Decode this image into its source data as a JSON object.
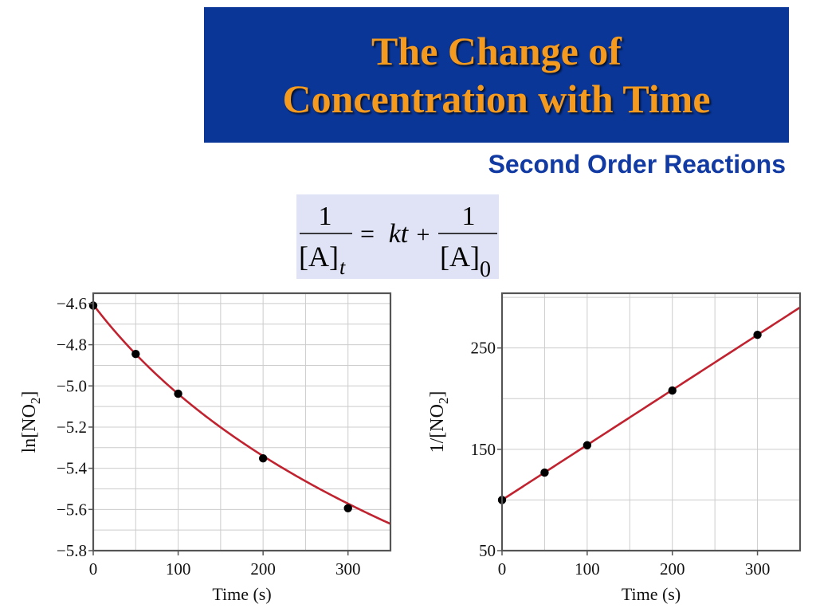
{
  "slide": {
    "title_lines": [
      "The Change of",
      "Concentration with Time"
    ],
    "subtitle": "Second Order Reactions",
    "equation": {
      "lhs_numerator": "1",
      "lhs_denominator": "[A]",
      "lhs_subscript": "t",
      "equals": "=",
      "middle_term": "kt",
      "plus": "+",
      "rhs_numerator": "1",
      "rhs_denominator": "[A]",
      "rhs_subscript": "0"
    }
  },
  "colors": {
    "title_bg": "#0a3697",
    "title_text": "#f39a1f",
    "subtitle_text": "#123aa3",
    "equation_bg": "#e0e3f5",
    "curve": "#c0232f",
    "points": "#000000",
    "grid": "#cccccc"
  },
  "chart_data": [
    {
      "type": "scatter",
      "xlabel": "Time (s)",
      "ylabel": "ln[NO",
      "ylabel_sub": "2",
      "ylabel_end": "]",
      "xlim": [
        0,
        350
      ],
      "ylim": [
        -5.8,
        -4.55
      ],
      "xticks": [
        0,
        100,
        200,
        300
      ],
      "xtick_labels": [
        "0",
        "100",
        "200",
        "300"
      ],
      "yticks": [
        -4.6,
        -4.8,
        -5.0,
        -5.2,
        -5.4,
        -5.6,
        -5.8
      ],
      "ytick_labels": [
        "−4.6",
        "−4.8",
        "−5.0",
        "−5.2",
        "−5.4",
        "−5.6",
        "−5.8"
      ],
      "grid": true,
      "series": [
        {
          "x": [
            0,
            50,
            100,
            200,
            300
          ],
          "y": [
            -4.61,
            -4.845,
            -5.038,
            -5.352,
            -5.594
          ],
          "fit": "ln(1/(100 + 0.543 t))"
        }
      ]
    },
    {
      "type": "scatter",
      "xlabel": "Time (s)",
      "ylabel": "1/[NO",
      "ylabel_sub": "2",
      "ylabel_end": "]",
      "xlim": [
        0,
        350
      ],
      "ylim": [
        50,
        304
      ],
      "xticks": [
        0,
        100,
        200,
        300
      ],
      "xtick_labels": [
        "0",
        "100",
        "200",
        "300"
      ],
      "yticks": [
        50,
        150,
        250
      ],
      "ytick_labels": [
        "50",
        "150",
        "250"
      ],
      "grid": true,
      "series": [
        {
          "x": [
            0,
            50,
            100,
            200,
            300
          ],
          "y": [
            100,
            127,
            154,
            208,
            263
          ],
          "fit": "linear: 100 + 0.543 t"
        }
      ]
    }
  ]
}
